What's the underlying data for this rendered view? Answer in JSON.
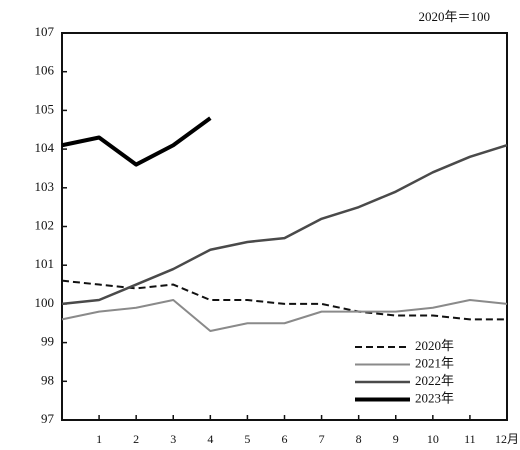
{
  "chart_data": {
    "type": "line",
    "annotation": "2020年＝100",
    "x": [
      0,
      1,
      2,
      3,
      4,
      5,
      6,
      7,
      8,
      9,
      10,
      11,
      12
    ],
    "series": [
      {
        "name": "2020年",
        "color": "#111111",
        "dashed": true,
        "values": [
          100.6,
          100.5,
          100.4,
          100.5,
          100.1,
          100.1,
          100.0,
          100.0,
          99.8,
          99.7,
          99.7,
          99.6,
          99.6
        ]
      },
      {
        "name": "2021年",
        "color": "#8a8a8a",
        "values": [
          99.6,
          99.8,
          99.9,
          100.1,
          99.3,
          99.5,
          99.5,
          99.8,
          99.8,
          99.8,
          99.9,
          100.1,
          100.0
        ]
      },
      {
        "name": "2022年",
        "color": "#4a4a4a",
        "values": [
          100.0,
          100.1,
          100.5,
          100.9,
          101.4,
          101.6,
          101.7,
          102.2,
          102.5,
          102.9,
          103.4,
          103.8,
          104.1
        ]
      },
      {
        "name": "2023年",
        "color": "#000000",
        "values": [
          104.1,
          104.3,
          103.6,
          104.1,
          104.8,
          null,
          null,
          null,
          null,
          null,
          null,
          null,
          null
        ]
      }
    ],
    "xlim": [
      0,
      12
    ],
    "xticks": [
      1,
      2,
      3,
      4,
      5,
      6,
      7,
      8,
      9,
      10,
      11,
      {
        "value": 12,
        "label": "12月"
      }
    ],
    "ylim": [
      97,
      107
    ],
    "yticks": [
      97,
      98,
      99,
      100,
      101,
      102,
      103,
      104,
      105,
      106,
      107
    ],
    "legend": "lower right"
  }
}
